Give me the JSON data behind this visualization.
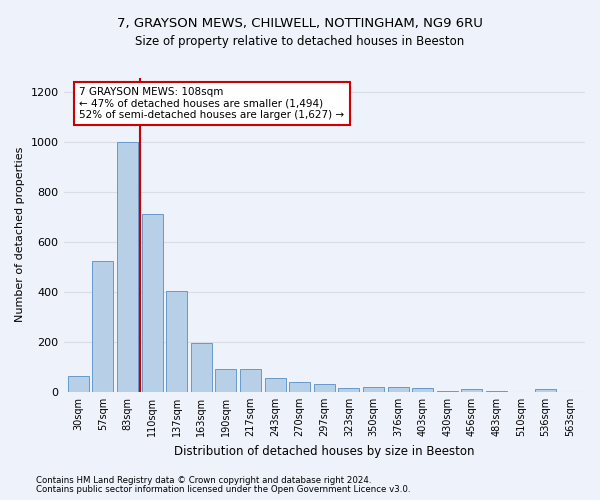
{
  "title_line1": "7, GRAYSON MEWS, CHILWELL, NOTTINGHAM, NG9 6RU",
  "title_line2": "Size of property relative to detached houses in Beeston",
  "xlabel": "Distribution of detached houses by size in Beeston",
  "ylabel": "Number of detached properties",
  "bar_labels": [
    "30sqm",
    "57sqm",
    "83sqm",
    "110sqm",
    "137sqm",
    "163sqm",
    "190sqm",
    "217sqm",
    "243sqm",
    "270sqm",
    "297sqm",
    "323sqm",
    "350sqm",
    "376sqm",
    "403sqm",
    "430sqm",
    "456sqm",
    "483sqm",
    "510sqm",
    "536sqm",
    "563sqm"
  ],
  "bar_values": [
    65,
    525,
    1000,
    715,
    405,
    195,
    90,
    90,
    55,
    40,
    30,
    15,
    20,
    20,
    15,
    5,
    10,
    5,
    0,
    10,
    0
  ],
  "bar_color": "#b8cfe8",
  "bar_edge_color": "#6699cc",
  "red_line_x": 2.5,
  "annotation_text": "7 GRAYSON MEWS: 108sqm\n← 47% of detached houses are smaller (1,494)\n52% of semi-detached houses are larger (1,627) →",
  "annotation_box_color": "white",
  "annotation_box_edge_color": "#cc0000",
  "red_line_color": "#cc0000",
  "ylim": [
    0,
    1260
  ],
  "yticks": [
    0,
    200,
    400,
    600,
    800,
    1000,
    1200
  ],
  "footer_line1": "Contains HM Land Registry data © Crown copyright and database right 2024.",
  "footer_line2": "Contains public sector information licensed under the Open Government Licence v3.0.",
  "background_color": "#eef2fa",
  "grid_color": "#d8dde8",
  "title_fontsize": 9.5,
  "subtitle_fontsize": 8.5,
  "annotation_fontsize": 7.5,
  "ylabel_fontsize": 8,
  "xlabel_fontsize": 8.5,
  "footer_fontsize": 6.2
}
